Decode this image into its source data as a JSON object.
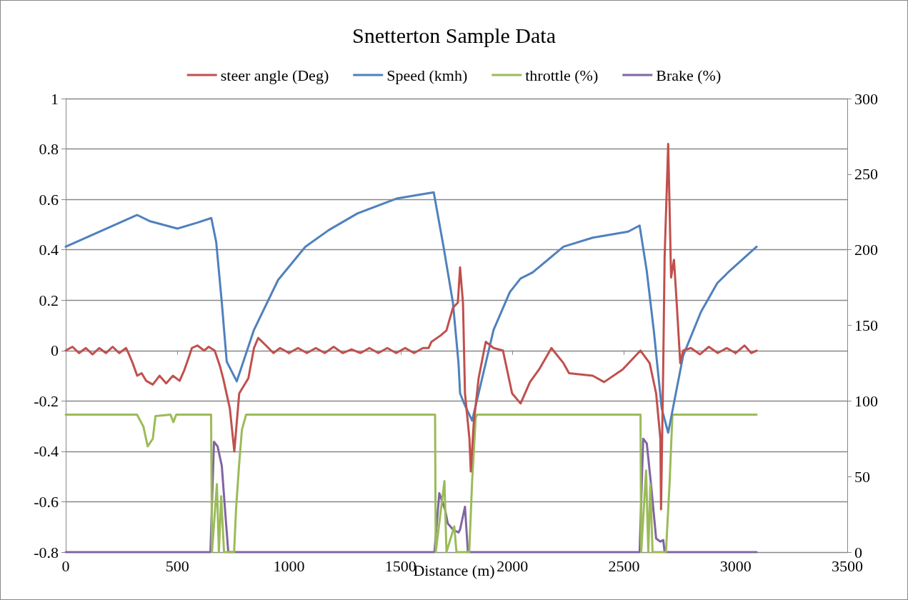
{
  "chart_data": {
    "type": "line",
    "title": "Snetterton Sample Data",
    "xlabel": "Distance (m)",
    "xlim": [
      0,
      3500
    ],
    "xticks": [
      0,
      500,
      1000,
      1500,
      2000,
      2500,
      3000,
      3500
    ],
    "ylim": [
      -0.8,
      1
    ],
    "yticks": [
      -0.8,
      -0.6,
      -0.4,
      -0.2,
      0,
      0.2,
      0.4,
      0.6,
      0.8,
      1
    ],
    "y2lim": [
      0,
      300
    ],
    "y2ticks": [
      0,
      50,
      100,
      150,
      200,
      250,
      300
    ],
    "grid": "y",
    "legend": "top",
    "marker": "none",
    "line_style": "solid",
    "series": [
      {
        "name": "steer angle (Deg)",
        "color": "#c0504d",
        "x": [
          0,
          30,
          60,
          90,
          120,
          150,
          180,
          210,
          240,
          270,
          281,
          300,
          320,
          340,
          360,
          390,
          420,
          450,
          480,
          510,
          530,
          550,
          565,
          590,
          620,
          640,
          667,
          690,
          705,
          735,
          755,
          777,
          818,
          843,
          862,
          897,
          930,
          960,
          1000,
          1040,
          1080,
          1120,
          1160,
          1200,
          1240,
          1280,
          1320,
          1360,
          1400,
          1440,
          1480,
          1520,
          1560,
          1600,
          1625,
          1638,
          1679,
          1705,
          1734,
          1756,
          1766,
          1779,
          1788,
          1808,
          1814,
          1827,
          1849,
          1881,
          1916,
          1958,
          1999,
          2037,
          2079,
          2120,
          2175,
          2229,
          2254,
          2360,
          2411,
          2494,
          2574,
          2615,
          2644,
          2663,
          2666,
          2676,
          2682,
          2698,
          2711,
          2724,
          2736,
          2752,
          2765,
          2800,
          2840,
          2880,
          2920,
          2960,
          3000,
          3040,
          3070,
          3094
        ],
        "values": [
          0,
          0.015,
          -0.01,
          0.01,
          -0.015,
          0.01,
          -0.01,
          0.015,
          -0.01,
          0.01,
          -0.01,
          -0.05,
          -0.1,
          -0.09,
          -0.12,
          -0.135,
          -0.1,
          -0.13,
          -0.1,
          -0.12,
          -0.08,
          -0.03,
          0.01,
          0.02,
          0,
          0.015,
          0,
          -0.06,
          -0.11,
          -0.23,
          -0.4,
          -0.17,
          -0.11,
          0.01,
          0.05,
          0.02,
          -0.01,
          0.01,
          -0.01,
          0.01,
          -0.01,
          0.01,
          -0.01,
          0.015,
          -0.01,
          0.005,
          -0.01,
          0.01,
          -0.01,
          0.01,
          -0.01,
          0.01,
          -0.01,
          0.01,
          0.01,
          0.035,
          0.06,
          0.08,
          0.17,
          0.19,
          0.33,
          0.19,
          -0.17,
          -0.35,
          -0.48,
          -0.29,
          -0.11,
          0.035,
          0.01,
          0,
          -0.17,
          -0.21,
          -0.125,
          -0.075,
          0.01,
          -0.05,
          -0.09,
          -0.1,
          -0.125,
          -0.075,
          0,
          -0.05,
          -0.17,
          -0.35,
          -0.63,
          -0.05,
          0.37,
          0.82,
          0.29,
          0.36,
          0.19,
          -0.05,
          0,
          0.01,
          -0.015,
          0.015,
          -0.01,
          0.01,
          -0.01,
          0.02,
          -0.01,
          0
        ]
      },
      {
        "name": "Speed (kmh)",
        "color": "#4f81bd",
        "axis": "y2",
        "x": [
          0,
          320,
          375,
          500,
          590,
          652,
          674,
          699,
          721,
          766,
          843,
          951,
          1073,
          1178,
          1306,
          1485,
          1648,
          1692,
          1734,
          1759,
          1766,
          1788,
          1820,
          1916,
          1989,
          2037,
          2091,
          2229,
          2360,
          2519,
          2570,
          2602,
          2634,
          2669,
          2698,
          2765,
          2845,
          2918,
          2973,
          3094
        ],
        "values": [
          202,
          223,
          219,
          214,
          218,
          221,
          205,
          165,
          126,
          113,
          147,
          180,
          202,
          213,
          224,
          234,
          238,
          202,
          165,
          125,
          105,
          97,
          87,
          147,
          172,
          181,
          185,
          202,
          208,
          212,
          216,
          186,
          146,
          95,
          79,
          130,
          159,
          178,
          186,
          202
        ]
      },
      {
        "name": "throttle (%)",
        "color": "#9bbb59",
        "axis": "y2",
        "x": [
          0,
          319,
          348,
          367,
          390,
          402,
          469,
          482,
          495,
          651,
          655,
          677,
          686,
          696,
          709,
          754,
          763,
          776,
          789,
          808,
          1654,
          1657,
          1696,
          1705,
          1740,
          1750,
          1807,
          1820,
          1836,
          1842,
          2574,
          2577,
          2599,
          2609,
          2618,
          2628,
          2688,
          2704,
          2717,
          3094
        ],
        "values": [
          91,
          91,
          83,
          70,
          75,
          90,
          91,
          86,
          91,
          91,
          0,
          45,
          0,
          37,
          0,
          0,
          29,
          57,
          81,
          91,
          91,
          0,
          47,
          0,
          17,
          0,
          0,
          47,
          89,
          91,
          91,
          0,
          54,
          0,
          45,
          0,
          0,
          45,
          91,
          91
        ]
      },
      {
        "name": "Brake (%)",
        "color": "#8064a2",
        "axis": "y2",
        "x": [
          0,
          648,
          664,
          680,
          699,
          715,
          728,
          1651,
          1673,
          1699,
          1711,
          1734,
          1759,
          1766,
          1788,
          1801,
          2570,
          2586,
          2602,
          2621,
          2644,
          2663,
          2676,
          2682,
          3094
        ],
        "values": [
          0,
          0,
          73,
          70,
          57,
          25,
          0,
          0,
          39,
          28,
          19,
          15,
          13,
          15,
          30,
          0,
          0,
          75,
          72,
          45,
          9,
          7,
          8,
          0,
          0
        ]
      }
    ]
  }
}
